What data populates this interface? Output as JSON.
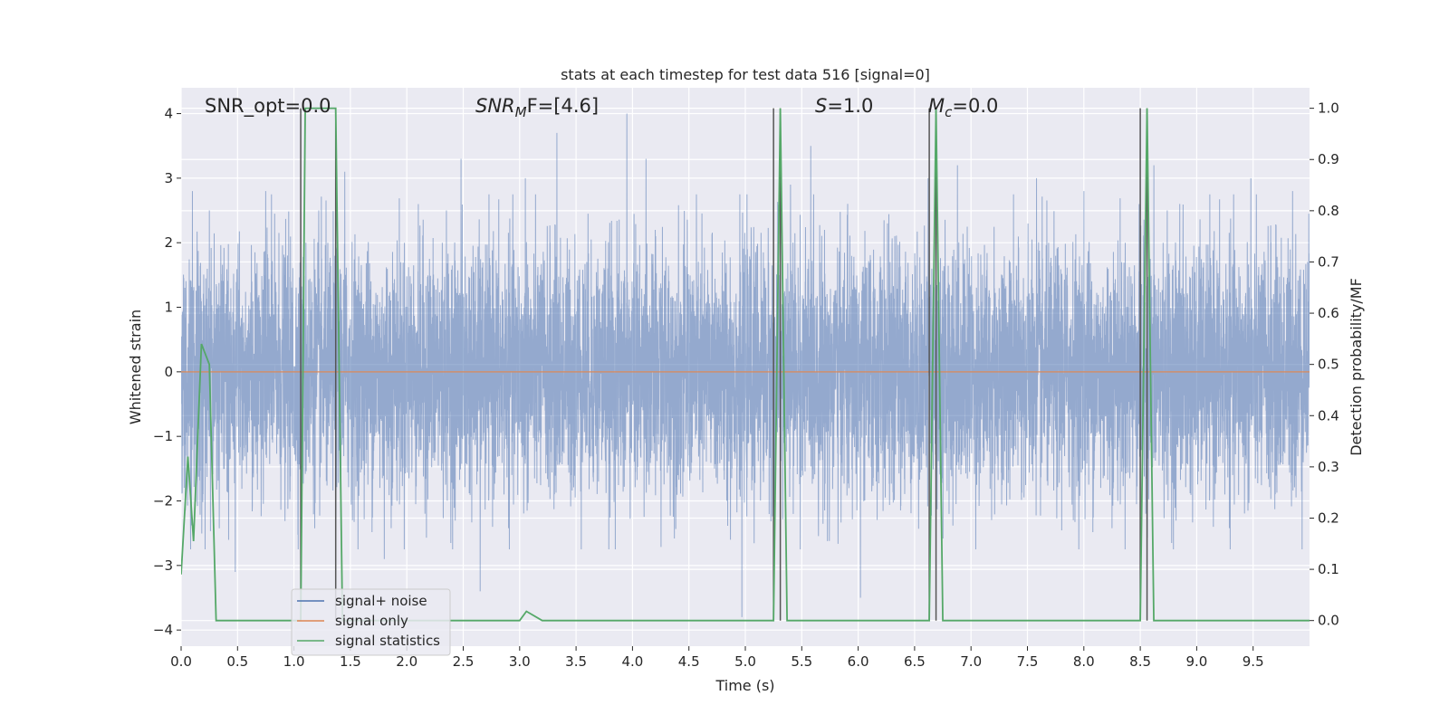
{
  "chart_data": {
    "type": "line",
    "title": "stats at each timestep for test data 516 [signal=0]",
    "xlabel": "Time (s)",
    "ylabel": "Whitened strain",
    "ylabel_right": "Detection probability/MF",
    "xlim": [
      0.0,
      10.0
    ],
    "ylim": [
      -4.25,
      4.4
    ],
    "ylim_right": [
      -0.05,
      1.04
    ],
    "xticks": [
      0.0,
      0.5,
      1.0,
      1.5,
      2.0,
      2.5,
      3.0,
      3.5,
      4.0,
      4.5,
      5.0,
      5.5,
      6.0,
      6.5,
      7.0,
      7.5,
      8.0,
      8.5,
      9.0,
      9.5
    ],
    "xtick_labels": [
      "0.0",
      "0.5",
      "1.0",
      "1.5",
      "2.0",
      "2.5",
      "3.0",
      "3.5",
      "4.0",
      "4.5",
      "5.0",
      "5.5",
      "6.0",
      "6.5",
      "7.0",
      "7.5",
      "8.0",
      "8.5",
      "9.0",
      "9.5"
    ],
    "yticks": [
      -4,
      -3,
      -2,
      -1,
      0,
      1,
      2,
      3,
      4
    ],
    "ytick_labels": [
      "−4",
      "−3",
      "−2",
      "−1",
      "0",
      "1",
      "2",
      "3",
      "4"
    ],
    "yticks_right": [
      0.0,
      0.1,
      0.2,
      0.3,
      0.4,
      0.5,
      0.6,
      0.7,
      0.8,
      0.9,
      1.0
    ],
    "ytick_labels_right": [
      "0.0",
      "0.1",
      "0.2",
      "0.3",
      "0.4",
      "0.5",
      "0.6",
      "0.7",
      "0.8",
      "0.9",
      "1.0"
    ],
    "grid": true,
    "legend_position": "lower-left",
    "annotations": {
      "snr_opt": "SNR_opt=0.0",
      "snr_mf_base": "SNR",
      "snr_mf_sub": "M",
      "snr_mf_tail": "F=[4.6]",
      "s_italic": "S",
      "s_tail": "=1.0",
      "mc_italic": "M",
      "mc_sub": "c",
      "mc_tail": "=0.0"
    },
    "series": [
      {
        "name": "signal+ noise",
        "color": "#4c72b0",
        "description_kind": "noise",
        "n_samples": 8192,
        "std": 0.95,
        "spikes": [
          [
            0.1,
            2.8
          ],
          [
            0.25,
            2.5
          ],
          [
            0.75,
            2.8
          ],
          [
            1.22,
            2.5
          ],
          [
            1.45,
            3.1
          ],
          [
            2.48,
            3.3
          ],
          [
            3.05,
            3.0
          ],
          [
            3.33,
            3.7
          ],
          [
            3.95,
            4.0
          ],
          [
            4.12,
            3.3
          ],
          [
            4.97,
            -3.8
          ],
          [
            5.58,
            3.5
          ],
          [
            6.02,
            -3.5
          ],
          [
            6.62,
            3.0
          ],
          [
            6.88,
            3.2
          ],
          [
            7.58,
            3.0
          ],
          [
            8.0,
            2.8
          ],
          [
            8.62,
            3.2
          ],
          [
            9.48,
            3.0
          ],
          [
            0.48,
            -3.1
          ],
          [
            2.65,
            -3.4
          ],
          [
            1.8,
            -2.9
          ],
          [
            9.85,
            2.8
          ],
          [
            8.85,
            2.6
          ],
          [
            5.4,
            2.9
          ]
        ]
      },
      {
        "name": "signal only",
        "color": "#dd8452",
        "x": [
          0.0,
          10.0
        ],
        "y": [
          0.0,
          0.0
        ]
      },
      {
        "name": "signal statistics",
        "color": "#55a868",
        "axis": "right",
        "x": [
          0.0,
          0.06,
          0.11,
          0.18,
          0.25,
          0.31,
          1.06,
          1.1,
          1.37,
          1.43,
          3.0,
          3.06,
          3.2,
          5.25,
          5.31,
          5.37,
          6.63,
          6.69,
          6.75,
          8.5,
          8.56,
          8.62,
          10.0
        ],
        "y": [
          0.09,
          0.32,
          0.155,
          0.54,
          0.5,
          0.0,
          0.0,
          1.0,
          1.0,
          0.0,
          0.0,
          0.018,
          0.0,
          0.0,
          1.0,
          0.0,
          0.0,
          1.0,
          0.0,
          0.0,
          1.0,
          0.0,
          0.0
        ]
      }
    ],
    "vlines": [
      {
        "x": 1.06,
        "y0": 0.0,
        "y1": 1.0,
        "color": "#555555"
      },
      {
        "x": 1.37,
        "y0": 0.0,
        "y1": 1.0,
        "color": "#555555"
      },
      {
        "x": 5.25,
        "y0": 0.0,
        "y1": 1.0,
        "color": "#555555"
      },
      {
        "x": 5.31,
        "y0": 0.0,
        "y1": 1.0,
        "color": "#555555"
      },
      {
        "x": 6.63,
        "y0": 0.0,
        "y1": 1.0,
        "color": "#555555"
      },
      {
        "x": 6.69,
        "y0": 0.0,
        "y1": 1.0,
        "color": "#555555"
      },
      {
        "x": 8.5,
        "y0": 0.0,
        "y1": 1.0,
        "color": "#555555"
      },
      {
        "x": 8.56,
        "y0": 0.0,
        "y1": 1.0,
        "color": "#555555"
      }
    ]
  },
  "colors": {
    "axes_bg": "#eaeaf2",
    "grid": "#ffffff",
    "text": "#262626"
  }
}
